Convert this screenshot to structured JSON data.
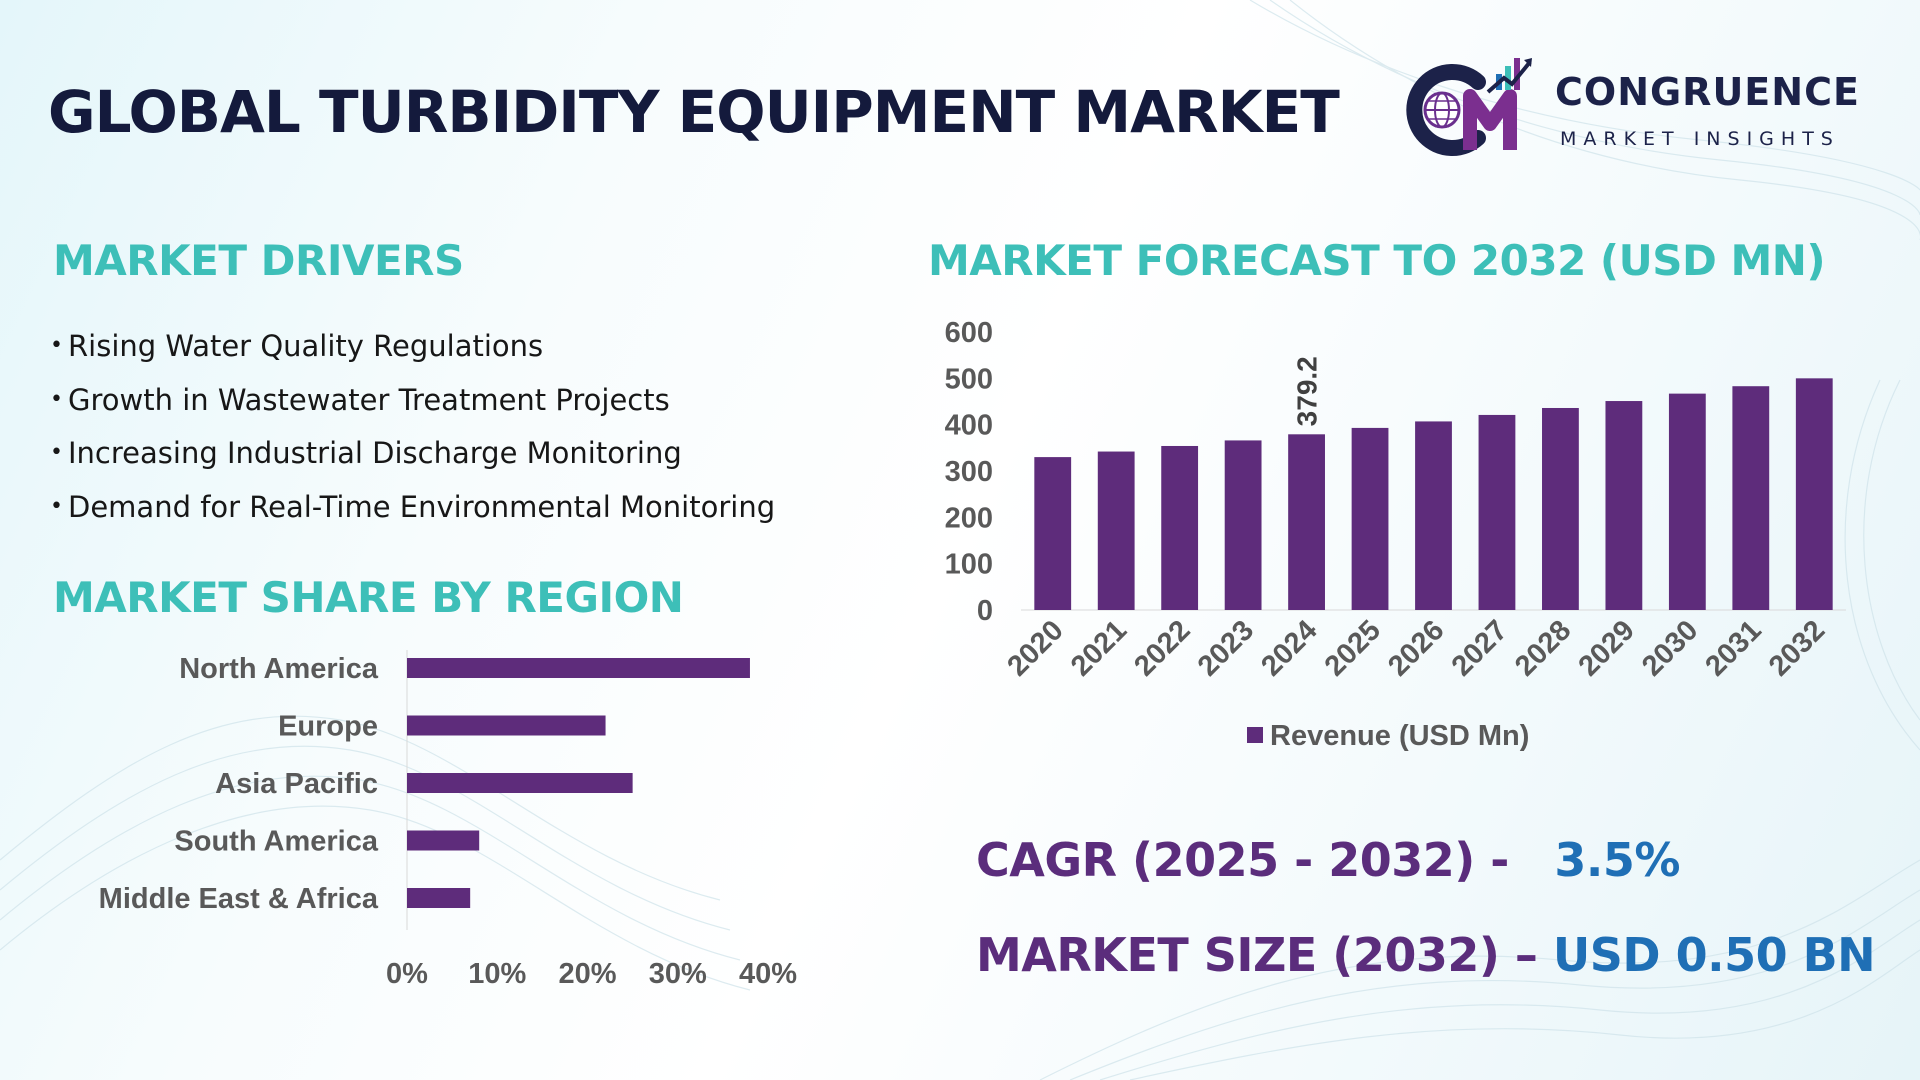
{
  "title": "GLOBAL TURBIDITY EQUIPMENT MARKET",
  "logo": {
    "name": "CONGRUENCE",
    "subtitle": "MARKET INSIGHTS",
    "mark": "CM"
  },
  "colors": {
    "accent": "#3dbfb8",
    "title": "#141a3c",
    "bar": "#5e2c7b",
    "stat_label": "#5b2d7c",
    "stat_value": "#1f6fb5"
  },
  "drivers": {
    "heading": "MARKET DRIVERS",
    "bullet": "•",
    "items": [
      "Rising Water Quality Regulations",
      "Growth in Wastewater Treatment Projects",
      "Increasing Industrial Discharge Monitoring",
      "Demand for Real-Time Environmental Monitoring"
    ]
  },
  "region": {
    "heading": "MARKET SHARE BY REGION"
  },
  "forecast": {
    "heading": "MARKET FORECAST TO 2032 (USD MN)"
  },
  "stats": {
    "cagr_label": "CAGR (2025 - 2032) -",
    "cagr_value": "3.5%",
    "size_label": "MARKET SIZE (2032) –",
    "size_value": "USD 0.50 BN"
  },
  "chart_data": [
    {
      "type": "bar",
      "orientation": "horizontal",
      "categories": [
        "North America",
        "Europe",
        "Asia Pacific",
        "South America",
        "Middle East & Africa"
      ],
      "values": [
        38,
        22,
        25,
        8,
        7
      ],
      "unit": "%",
      "xlim": [
        0,
        40
      ],
      "xticks": [
        "0%",
        "10%",
        "20%",
        "30%",
        "40%"
      ],
      "grid": false
    },
    {
      "type": "bar",
      "categories": [
        "2020",
        "2021",
        "2022",
        "2023",
        "2024",
        "2025",
        "2026",
        "2027",
        "2028",
        "2029",
        "2030",
        "2031",
        "2032"
      ],
      "series": [
        {
          "name": "Revenue (USD Mn)",
          "values": [
            330,
            342,
            354,
            366,
            379.2,
            393,
            407,
            421,
            436,
            451,
            467,
            483,
            500
          ]
        }
      ],
      "data_labels": [
        {
          "category": "2024",
          "text": "379.2"
        }
      ],
      "ylim": [
        0,
        600
      ],
      "yticks": [
        0,
        100,
        200,
        300,
        400,
        500,
        600
      ],
      "legend": "bottom",
      "grid": false
    }
  ]
}
